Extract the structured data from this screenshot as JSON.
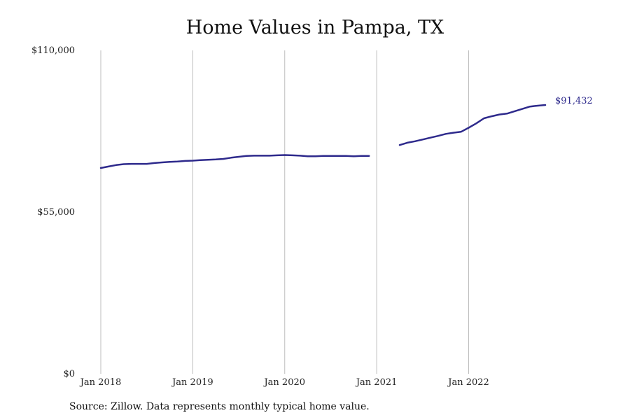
{
  "chart_data": {
    "type": "line",
    "title": "Home Values in Pampa, TX",
    "xlabel": "",
    "ylabel": "",
    "ylim": [
      0,
      110000
    ],
    "y_ticks": [
      {
        "value": 0,
        "label": "$0"
      },
      {
        "value": 55000,
        "label": "$55,000"
      },
      {
        "value": 110000,
        "label": "$110,000"
      }
    ],
    "x_ticks": [
      {
        "date": "2018-01",
        "label": "Jan 2018"
      },
      {
        "date": "2019-01",
        "label": "Jan 2019"
      },
      {
        "date": "2020-01",
        "label": "Jan 2020"
      },
      {
        "date": "2021-01",
        "label": "Jan 2021"
      },
      {
        "date": "2022-01",
        "label": "Jan 2022"
      }
    ],
    "xlim": [
      "2018-01",
      "2022-12"
    ],
    "grid": "vertical lines at x ticks",
    "line_color": "#2e2a8c",
    "series": [
      {
        "segments": [
          [
            [
              "2018-01",
              70000
            ],
            [
              "2018-02",
              70500
            ],
            [
              "2018-03",
              71000
            ],
            [
              "2018-04",
              71300
            ],
            [
              "2018-05",
              71400
            ],
            [
              "2018-06",
              71400
            ],
            [
              "2018-07",
              71400
            ],
            [
              "2018-08",
              71700
            ],
            [
              "2018-09",
              71900
            ],
            [
              "2018-10",
              72100
            ],
            [
              "2018-11",
              72200
            ],
            [
              "2018-12",
              72400
            ],
            [
              "2019-01",
              72500
            ],
            [
              "2019-02",
              72700
            ],
            [
              "2019-03",
              72800
            ],
            [
              "2019-04",
              72900
            ],
            [
              "2019-05",
              73100
            ],
            [
              "2019-06",
              73500
            ],
            [
              "2019-07",
              73800
            ],
            [
              "2019-08",
              74100
            ],
            [
              "2019-09",
              74200
            ],
            [
              "2019-10",
              74200
            ],
            [
              "2019-11",
              74200
            ],
            [
              "2019-12",
              74300
            ],
            [
              "2020-01",
              74400
            ],
            [
              "2020-02",
              74300
            ],
            [
              "2020-03",
              74200
            ],
            [
              "2020-04",
              74000
            ],
            [
              "2020-05",
              74000
            ],
            [
              "2020-06",
              74100
            ],
            [
              "2020-07",
              74100
            ],
            [
              "2020-08",
              74100
            ],
            [
              "2020-09",
              74100
            ],
            [
              "2020-10",
              74000
            ],
            [
              "2020-11",
              74100
            ],
            [
              "2020-12",
              74100
            ]
          ],
          [
            [
              "2021-04",
              77800
            ],
            [
              "2021-05",
              78600
            ],
            [
              "2021-06",
              79100
            ],
            [
              "2021-07",
              79700
            ],
            [
              "2021-08",
              80300
            ],
            [
              "2021-09",
              80900
            ],
            [
              "2021-10",
              81600
            ],
            [
              "2021-11",
              82000
            ],
            [
              "2021-12",
              82300
            ],
            [
              "2022-01",
              83700
            ],
            [
              "2022-02",
              85200
            ],
            [
              "2022-03",
              86900
            ],
            [
              "2022-04",
              87600
            ],
            [
              "2022-05",
              88200
            ],
            [
              "2022-06",
              88500
            ],
            [
              "2022-07",
              89300
            ],
            [
              "2022-08",
              90100
            ],
            [
              "2022-09",
              90900
            ],
            [
              "2022-10",
              91200
            ],
            [
              "2022-11",
              91432
            ]
          ]
        ]
      }
    ],
    "end_label": "$91,432",
    "source_note": "Source: Zillow. Data represents monthly typical home value."
  }
}
